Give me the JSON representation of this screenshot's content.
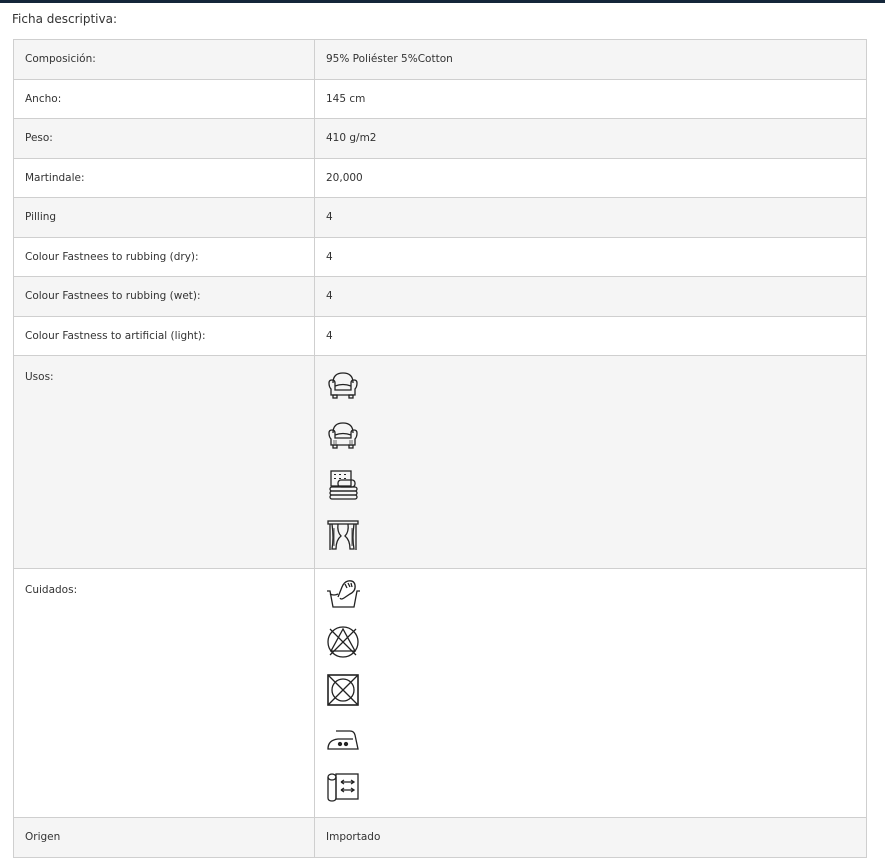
{
  "title": "Ficha descriptiva:",
  "rows": [
    {
      "label": "Composición:",
      "value": "95% Poliéster 5%Cotton"
    },
    {
      "label": "Ancho:",
      "value": "145 cm"
    },
    {
      "label": "Peso:",
      "value": "410 g/m2"
    },
    {
      "label": "Martindale:",
      "value": "20,000"
    },
    {
      "label": "Pilling",
      "value": "4"
    },
    {
      "label": "Colour Fastnees to rubbing (dry):",
      "value": "4"
    },
    {
      "label": "Colour Fastnees to rubbing (wet):",
      "value": "4"
    },
    {
      "label": "Colour Fastness to artificial (light):",
      "value": "4"
    }
  ],
  "usos": {
    "label": "Usos:",
    "icons": [
      "armchair-icon",
      "armchair-upholstered-icon",
      "bedding-icon",
      "curtain-icon"
    ]
  },
  "cuidados": {
    "label": "Cuidados:",
    "icons": [
      "hand-wash-icon",
      "do-not-bleach-icon",
      "do-not-tumble-dry-icon",
      "iron-medium-icon",
      "fabric-roll-icon"
    ]
  },
  "origen": {
    "label": "Origen",
    "value": "Importado"
  }
}
